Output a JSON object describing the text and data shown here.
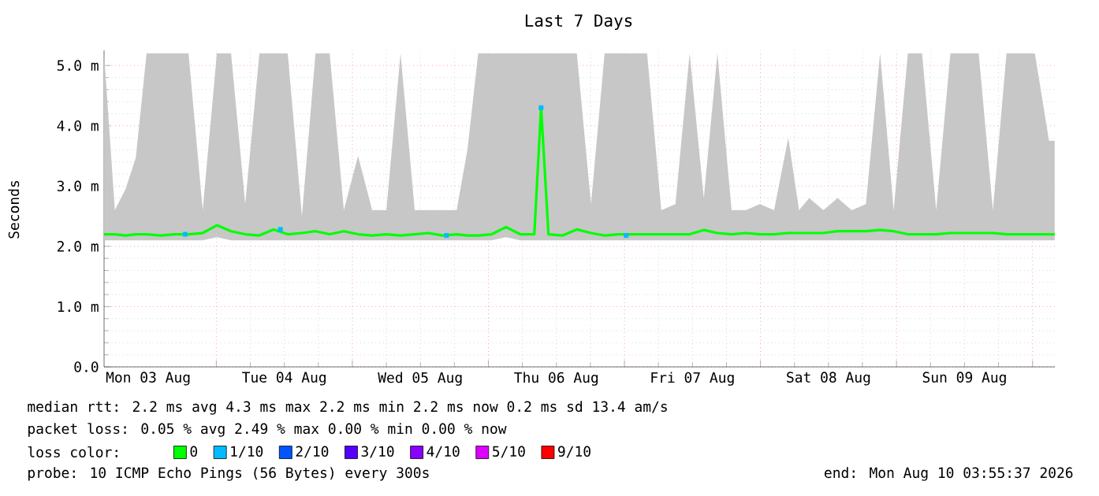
{
  "chart_data": {
    "type": "line",
    "title": "Last 7 Days",
    "ylabel": "Seconds",
    "xlim": [
      "2026-08-03T04:12",
      "2026-08-10T03:56"
    ],
    "ylim": [
      0,
      5.25
    ],
    "xticks": [
      {
        "value": "2026-08-03T12:00",
        "label": "Mon 03 Aug"
      },
      {
        "value": "2026-08-04T12:00",
        "label": "Tue 04 Aug"
      },
      {
        "value": "2026-08-05T12:00",
        "label": "Wed 05 Aug"
      },
      {
        "value": "2026-08-06T12:00",
        "label": "Thu 06 Aug"
      },
      {
        "value": "2026-08-07T12:00",
        "label": "Fri 07 Aug"
      },
      {
        "value": "2026-08-08T12:00",
        "label": "Sat 08 Aug"
      },
      {
        "value": "2026-08-09T12:00",
        "label": "Sun 09 Aug"
      },
      {
        "value": "2026-08-04T00:00",
        "label": null
      },
      {
        "value": "2026-08-05T00:00",
        "label": null
      },
      {
        "value": "2026-08-06T00:00",
        "label": null
      },
      {
        "value": "2026-08-07T00:00",
        "label": null
      },
      {
        "value": "2026-08-08T00:00",
        "label": null
      },
      {
        "value": "2026-08-09T00:00",
        "label": null
      },
      {
        "value": "2026-08-10T00:00",
        "label": null
      }
    ],
    "yticks": [
      {
        "value": 0,
        "label": "0.0"
      },
      {
        "value": 1,
        "label": "1.0 m"
      },
      {
        "value": 2,
        "label": "2.0 m"
      },
      {
        "value": 3,
        "label": "3.0 m"
      },
      {
        "value": 4,
        "label": "4.0 m"
      },
      {
        "value": 5,
        "label": "5.0 m"
      }
    ],
    "grid": true,
    "legend": "bottom",
    "legend_title": "loss color:",
    "x": [
      "2026-08-03T04:12",
      "2026-08-03T06:06",
      "2026-08-03T08:00",
      "2026-08-03T09:48",
      "2026-08-03T11:42",
      "2026-08-03T14:12",
      "2026-08-03T16:42",
      "2026-08-03T19:06",
      "2026-08-03T21:36",
      "2026-08-04T00:06",
      "2026-08-04T02:36",
      "2026-08-04T05:06",
      "2026-08-04T07:36",
      "2026-08-04T10:06",
      "2026-08-04T12:36",
      "2026-08-04T15:06",
      "2026-08-04T17:30",
      "2026-08-04T20:00",
      "2026-08-04T22:30",
      "2026-08-05T01:00",
      "2026-08-05T03:30",
      "2026-08-05T06:00",
      "2026-08-05T08:30",
      "2026-08-05T11:00",
      "2026-08-05T13:24",
      "2026-08-05T15:54",
      "2026-08-05T18:24",
      "2026-08-05T20:18",
      "2026-08-05T22:12",
      "2026-08-06T00:36",
      "2026-08-06T03:06",
      "2026-08-06T05:36",
      "2026-08-06T08:06",
      "2026-08-06T09:18",
      "2026-08-06T10:36",
      "2026-08-06T13:06",
      "2026-08-06T15:36",
      "2026-08-06T18:06",
      "2026-08-06T20:30",
      "2026-08-06T23:00",
      "2026-08-07T01:30",
      "2026-08-07T04:00",
      "2026-08-07T06:30",
      "2026-08-07T09:00",
      "2026-08-07T11:30",
      "2026-08-07T14:00",
      "2026-08-07T16:24",
      "2026-08-07T18:54",
      "2026-08-07T21:24",
      "2026-08-07T23:54",
      "2026-08-08T02:24",
      "2026-08-08T04:54",
      "2026-08-08T06:48",
      "2026-08-08T08:36",
      "2026-08-08T11:06",
      "2026-08-08T13:36",
      "2026-08-08T16:06",
      "2026-08-08T18:36",
      "2026-08-08T21:06",
      "2026-08-08T23:30",
      "2026-08-09T02:00",
      "2026-08-09T04:30",
      "2026-08-09T07:00",
      "2026-08-09T09:30",
      "2026-08-09T12:00",
      "2026-08-09T14:30",
      "2026-08-09T17:00",
      "2026-08-09T19:24",
      "2026-08-09T21:54",
      "2026-08-10T00:24",
      "2026-08-10T02:54",
      "2026-08-10T03:54"
    ],
    "series": [
      {
        "name": "0",
        "color": "#00ff00",
        "values": [
          2.2,
          2.2,
          2.18,
          2.2,
          2.2,
          2.18,
          2.2,
          2.2,
          2.22,
          2.35,
          2.25,
          2.2,
          2.18,
          2.28,
          2.2,
          2.22,
          2.25,
          2.2,
          2.25,
          2.2,
          2.18,
          2.2,
          2.18,
          2.2,
          2.22,
          2.18,
          2.2,
          2.18,
          2.18,
          2.2,
          2.32,
          2.2,
          2.2,
          4.3,
          2.2,
          2.18,
          2.28,
          2.22,
          2.18,
          2.2,
          2.2,
          2.2,
          2.2,
          2.2,
          2.2,
          2.27,
          2.22,
          2.2,
          2.22,
          2.2,
          2.2,
          2.22,
          2.22,
          2.22,
          2.22,
          2.25,
          2.25,
          2.25,
          2.27,
          2.25,
          2.2,
          2.2,
          2.2,
          2.22,
          2.22,
          2.22,
          2.22,
          2.2,
          2.2,
          2.2,
          2.2,
          2.2
        ],
        "lower": [
          2.1,
          2.1,
          2.1,
          2.1,
          2.1,
          2.1,
          2.1,
          2.1,
          2.1,
          2.15,
          2.1,
          2.1,
          2.1,
          2.1,
          2.1,
          2.1,
          2.1,
          2.1,
          2.1,
          2.1,
          2.1,
          2.1,
          2.1,
          2.1,
          2.1,
          2.1,
          2.1,
          2.1,
          2.1,
          2.1,
          2.15,
          2.1,
          2.1,
          2.1,
          2.1,
          2.1,
          2.1,
          2.1,
          2.1,
          2.1,
          2.1,
          2.1,
          2.1,
          2.1,
          2.1,
          2.1,
          2.1,
          2.1,
          2.1,
          2.1,
          2.1,
          2.1,
          2.1,
          2.1,
          2.1,
          2.1,
          2.1,
          2.1,
          2.1,
          2.1,
          2.1,
          2.1,
          2.1,
          2.1,
          2.1,
          2.1,
          2.1,
          2.1,
          2.1,
          2.1,
          2.1,
          2.1
        ],
        "upper": [
          5.2,
          2.6,
          2.95,
          3.47,
          5.2,
          5.2,
          5.2,
          5.2,
          2.6,
          5.2,
          5.2,
          2.7,
          5.2,
          5.2,
          5.2,
          2.5,
          5.2,
          5.2,
          2.6,
          3.5,
          2.6,
          2.6,
          5.2,
          2.6,
          2.6,
          2.6,
          2.6,
          3.6,
          5.2,
          5.2,
          5.2,
          5.2,
          5.2,
          5.2,
          5.2,
          5.2,
          5.2,
          2.7,
          5.2,
          5.2,
          5.2,
          5.2,
          2.6,
          2.7,
          5.2,
          2.8,
          5.2,
          2.6,
          2.6,
          2.7,
          2.6,
          3.8,
          2.6,
          2.8,
          2.6,
          2.8,
          2.6,
          2.7,
          5.2,
          2.6,
          5.2,
          5.2,
          2.6,
          5.2,
          5.2,
          5.2,
          2.6,
          5.2,
          5.2,
          5.2,
          3.75,
          3.75
        ]
      },
      {
        "name": "1/10",
        "type": "scatter",
        "color": "#00bbff",
        "marker": "square",
        "x": [
          "2026-08-03T18:30",
          "2026-08-04T11:18",
          "2026-08-05T16:36",
          "2026-08-06T09:18",
          "2026-08-07T00:18"
        ],
        "values": [
          2.2,
          2.28,
          2.18,
          4.3,
          2.18
        ]
      },
      {
        "name": "2/10",
        "color": "#0055ff",
        "values": [
          null,
          null,
          null,
          null,
          null,
          null,
          null,
          null,
          null,
          null,
          null,
          null,
          null,
          null,
          null,
          null,
          null,
          null,
          null,
          null,
          null,
          null,
          null,
          null,
          null,
          null,
          null,
          null,
          null,
          null,
          null,
          null,
          null,
          null,
          null,
          null,
          null,
          null,
          null,
          null,
          null,
          null,
          null,
          null,
          null,
          null,
          null,
          null,
          null,
          null,
          null,
          null,
          null,
          null,
          null,
          null,
          null,
          null,
          null,
          null,
          null,
          null,
          null,
          null,
          null,
          null,
          null,
          null,
          null,
          null,
          null,
          null
        ]
      },
      {
        "name": "3/10",
        "color": "#5500ff",
        "values": [
          null,
          null,
          null,
          null,
          null,
          null,
          null,
          null,
          null,
          null,
          null,
          null,
          null,
          null,
          null,
          null,
          null,
          null,
          null,
          null,
          null,
          null,
          null,
          null,
          null,
          null,
          null,
          null,
          null,
          null,
          null,
          null,
          null,
          null,
          null,
          null,
          null,
          null,
          null,
          null,
          null,
          null,
          null,
          null,
          null,
          null,
          null,
          null,
          null,
          null,
          null,
          null,
          null,
          null,
          null,
          null,
          null,
          null,
          null,
          null,
          null,
          null,
          null,
          null,
          null,
          null,
          null,
          null,
          null,
          null,
          null,
          null
        ]
      },
      {
        "name": "4/10",
        "color": "#8800ff",
        "values": [
          null,
          null,
          null,
          null,
          null,
          null,
          null,
          null,
          null,
          null,
          null,
          null,
          null,
          null,
          null,
          null,
          null,
          null,
          null,
          null,
          null,
          null,
          null,
          null,
          null,
          null,
          null,
          null,
          null,
          null,
          null,
          null,
          null,
          null,
          null,
          null,
          null,
          null,
          null,
          null,
          null,
          null,
          null,
          null,
          null,
          null,
          null,
          null,
          null,
          null,
          null,
          null,
          null,
          null,
          null,
          null,
          null,
          null,
          null,
          null,
          null,
          null,
          null,
          null,
          null,
          null,
          null,
          null,
          null,
          null,
          null,
          null
        ]
      },
      {
        "name": "5/10",
        "color": "#dd00ff",
        "values": [
          null,
          null,
          null,
          null,
          null,
          null,
          null,
          null,
          null,
          null,
          null,
          null,
          null,
          null,
          null,
          null,
          null,
          null,
          null,
          null,
          null,
          null,
          null,
          null,
          null,
          null,
          null,
          null,
          null,
          null,
          null,
          null,
          null,
          null,
          null,
          null,
          null,
          null,
          null,
          null,
          null,
          null,
          null,
          null,
          null,
          null,
          null,
          null,
          null,
          null,
          null,
          null,
          null,
          null,
          null,
          null,
          null,
          null,
          null,
          null,
          null,
          null,
          null,
          null,
          null,
          null,
          null,
          null,
          null,
          null,
          null,
          null
        ]
      },
      {
        "name": "9/10",
        "color": "#ff0000",
        "values": [
          null,
          null,
          null,
          null,
          null,
          null,
          null,
          null,
          null,
          null,
          null,
          null,
          null,
          null,
          null,
          null,
          null,
          null,
          null,
          null,
          null,
          null,
          null,
          null,
          null,
          null,
          null,
          null,
          null,
          null,
          null,
          null,
          null,
          null,
          null,
          null,
          null,
          null,
          null,
          null,
          null,
          null,
          null,
          null,
          null,
          null,
          null,
          null,
          null,
          null,
          null,
          null,
          null,
          null,
          null,
          null,
          null,
          null,
          null,
          null,
          null,
          null,
          null,
          null,
          null,
          null,
          null,
          null,
          null,
          null,
          null,
          null
        ]
      }
    ],
    "annotations": [
      "median rtt:  2.2 ms avg  4.3 ms max  2.2 ms min  2.2 ms now  0.2 ms sd  13.4  am/s",
      "packet loss: 0.05 % avg  2.49 % max  0.00 % min  0.00 % now",
      "probe:  10 ICMP Echo Pings (56 Bytes) every 300s",
      "end: Mon Aug 10 03:55:37 2026"
    ]
  }
}
